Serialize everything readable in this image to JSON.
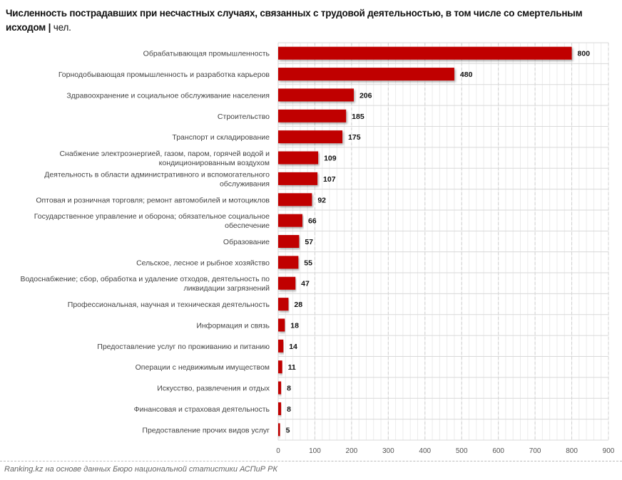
{
  "chart_data": {
    "type": "bar",
    "orientation": "horizontal",
    "title": "Численность пострадавших при несчастных случаях, связанных с трудовой деятельностью, в том числе со смертельным исходом",
    "unit": "чел.",
    "categories": [
      "Обрабатывающая промышленность",
      "Горнодобывающая промышленность и разработка карьеров",
      "Здравоохранение и социальное обслуживание населения",
      "Строительство",
      "Транспорт и складирование",
      "Снабжение электроэнергией, газом, паром, горячей водой и кондиционированным воздухом",
      "Деятельность в области административного и вспомогательного обслуживания",
      "Оптовая и розничная торговля; ремонт автомобилей и мотоциклов",
      "Государственное управление и оборона; обязательное социальное обеспечение",
      "Образование",
      "Сельское, лесное и рыбное хозяйство",
      "Водоснабжение; сбор, обработка и удаление отходов, деятельность по ликвидации загрязнений",
      "Профессиональная, научная и техническая деятельность",
      "Информация и связь",
      "Предоставление услуг по проживанию и питанию",
      "Операции с недвижимым имуществом",
      "Искусство, развлечения и отдых",
      "Финансовая и страховая деятельность",
      "Предоставление прочих видов услуг"
    ],
    "category_lines": [
      [
        "Обрабатывающая промышленность"
      ],
      [
        "Горнодобывающая промышленность и разработка карьеров"
      ],
      [
        "Здравоохранение и социальное обслуживание населения"
      ],
      [
        "Строительство"
      ],
      [
        "Транспорт и складирование"
      ],
      [
        "Снабжение электроэнергией, газом, паром, горячей водой и",
        "кондиционированным воздухом"
      ],
      [
        "Деятельность в области административного и вспомогательного",
        "обслуживания"
      ],
      [
        "Оптовая и розничная торговля; ремонт автомобилей и мотоциклов"
      ],
      [
        "Государственное управление и оборона; обязательное социальное",
        "обеспечение"
      ],
      [
        "Образование"
      ],
      [
        "Сельское, лесное и рыбное хозяйство"
      ],
      [
        "Водоснабжение; сбор, обработка и удаление отходов, деятельность по",
        "ликвидации загрязнений"
      ],
      [
        "Профессиональная, научная и техническая деятельность"
      ],
      [
        "Информация и связь"
      ],
      [
        "Предоставление услуг по проживанию и питанию"
      ],
      [
        "Операции с недвижимым имуществом"
      ],
      [
        "Искусство, развлечения и отдых"
      ],
      [
        "Финансовая и страховая деятельность"
      ],
      [
        "Предоставление прочих видов услуг"
      ]
    ],
    "values": [
      800,
      480,
      206,
      185,
      175,
      109,
      107,
      92,
      66,
      57,
      55,
      47,
      28,
      18,
      14,
      11,
      8,
      8,
      5
    ],
    "xlim": [
      0,
      900
    ],
    "xticks": [
      0,
      100,
      200,
      300,
      400,
      500,
      600,
      700,
      800,
      900
    ],
    "grid": true,
    "data_labels": true,
    "bar_color": "#c00000"
  },
  "source": "Ranking.kz на основе данных Бюро национальной статистики АСПиР РК"
}
